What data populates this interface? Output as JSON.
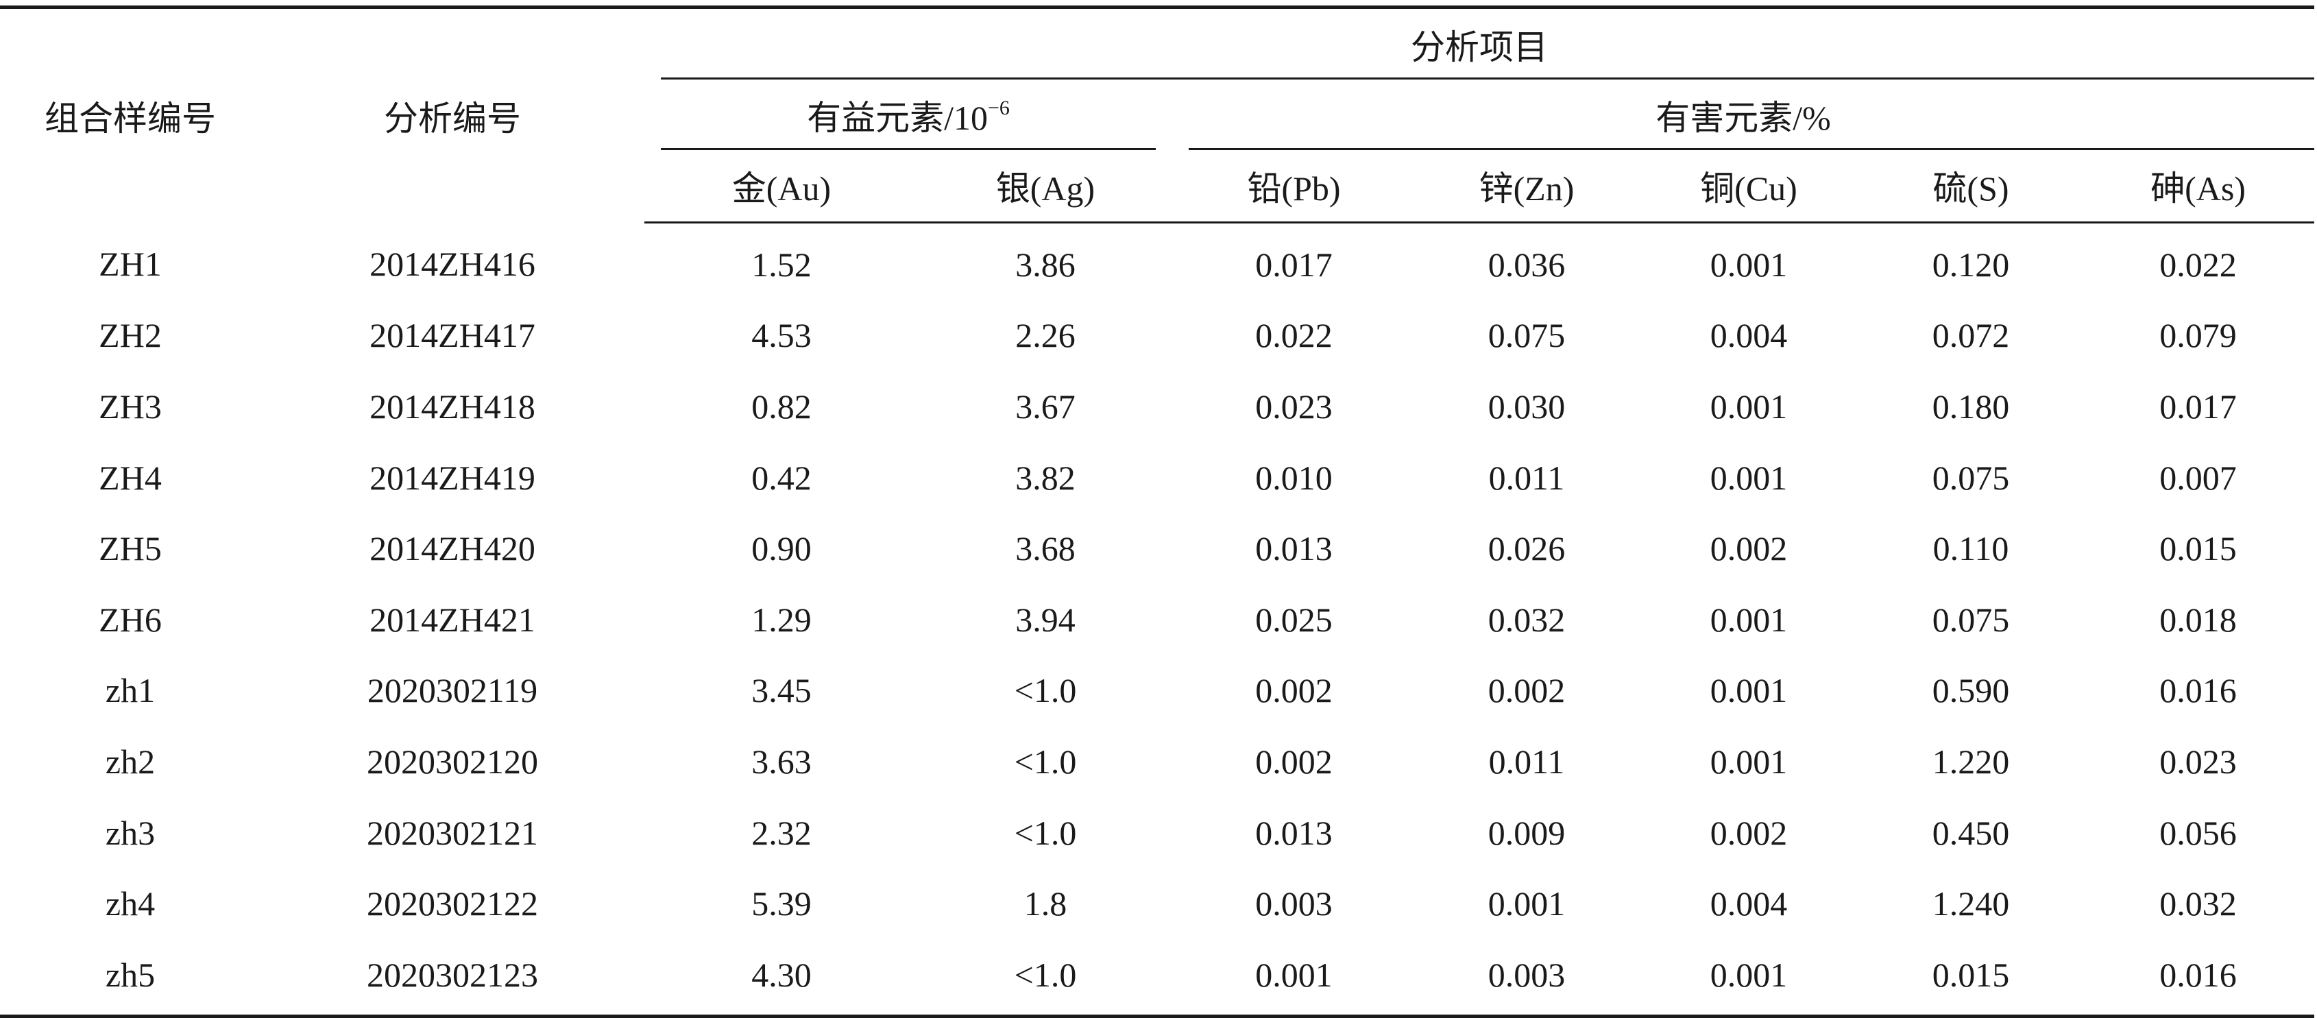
{
  "header": {
    "combo_id": "组合样编号",
    "analysis_id": "分析编号",
    "analysis_items": "分析项目",
    "beneficial": "有益元素/10",
    "beneficial_exp": "−6",
    "harmful": "有害元素/%",
    "au": "金(Au)",
    "ag": "银(Ag)",
    "pb": "铅(Pb)",
    "zn": "锌(Zn)",
    "cu": "铜(Cu)",
    "s": "硫(S)",
    "as": "砷(As)"
  },
  "rows": [
    [
      "ZH1",
      "2014ZH416",
      "1.52",
      "3.86",
      "0.017",
      "0.036",
      "0.001",
      "0.120",
      "0.022"
    ],
    [
      "ZH2",
      "2014ZH417",
      "4.53",
      "2.26",
      "0.022",
      "0.075",
      "0.004",
      "0.072",
      "0.079"
    ],
    [
      "ZH3",
      "2014ZH418",
      "0.82",
      "3.67",
      "0.023",
      "0.030",
      "0.001",
      "0.180",
      "0.017"
    ],
    [
      "ZH4",
      "2014ZH419",
      "0.42",
      "3.82",
      "0.010",
      "0.011",
      "0.001",
      "0.075",
      "0.007"
    ],
    [
      "ZH5",
      "2014ZH420",
      "0.90",
      "3.68",
      "0.013",
      "0.026",
      "0.002",
      "0.110",
      "0.015"
    ],
    [
      "ZH6",
      "2014ZH421",
      "1.29",
      "3.94",
      "0.025",
      "0.032",
      "0.001",
      "0.075",
      "0.018"
    ],
    [
      "zh1",
      "2020302119",
      "3.45",
      "<1.0",
      "0.002",
      "0.002",
      "0.001",
      "0.590",
      "0.016"
    ],
    [
      "zh2",
      "2020302120",
      "3.63",
      "<1.0",
      "0.002",
      "0.011",
      "0.001",
      "1.220",
      "0.023"
    ],
    [
      "zh3",
      "2020302121",
      "2.32",
      "<1.0",
      "0.013",
      "0.009",
      "0.002",
      "0.450",
      "0.056"
    ],
    [
      "zh4",
      "2020302122",
      "5.39",
      "1.8",
      "0.003",
      "0.001",
      "0.004",
      "1.240",
      "0.032"
    ],
    [
      "zh5",
      "2020302123",
      "4.30",
      "<1.0",
      "0.001",
      "0.003",
      "0.001",
      "0.015",
      "0.016"
    ]
  ]
}
